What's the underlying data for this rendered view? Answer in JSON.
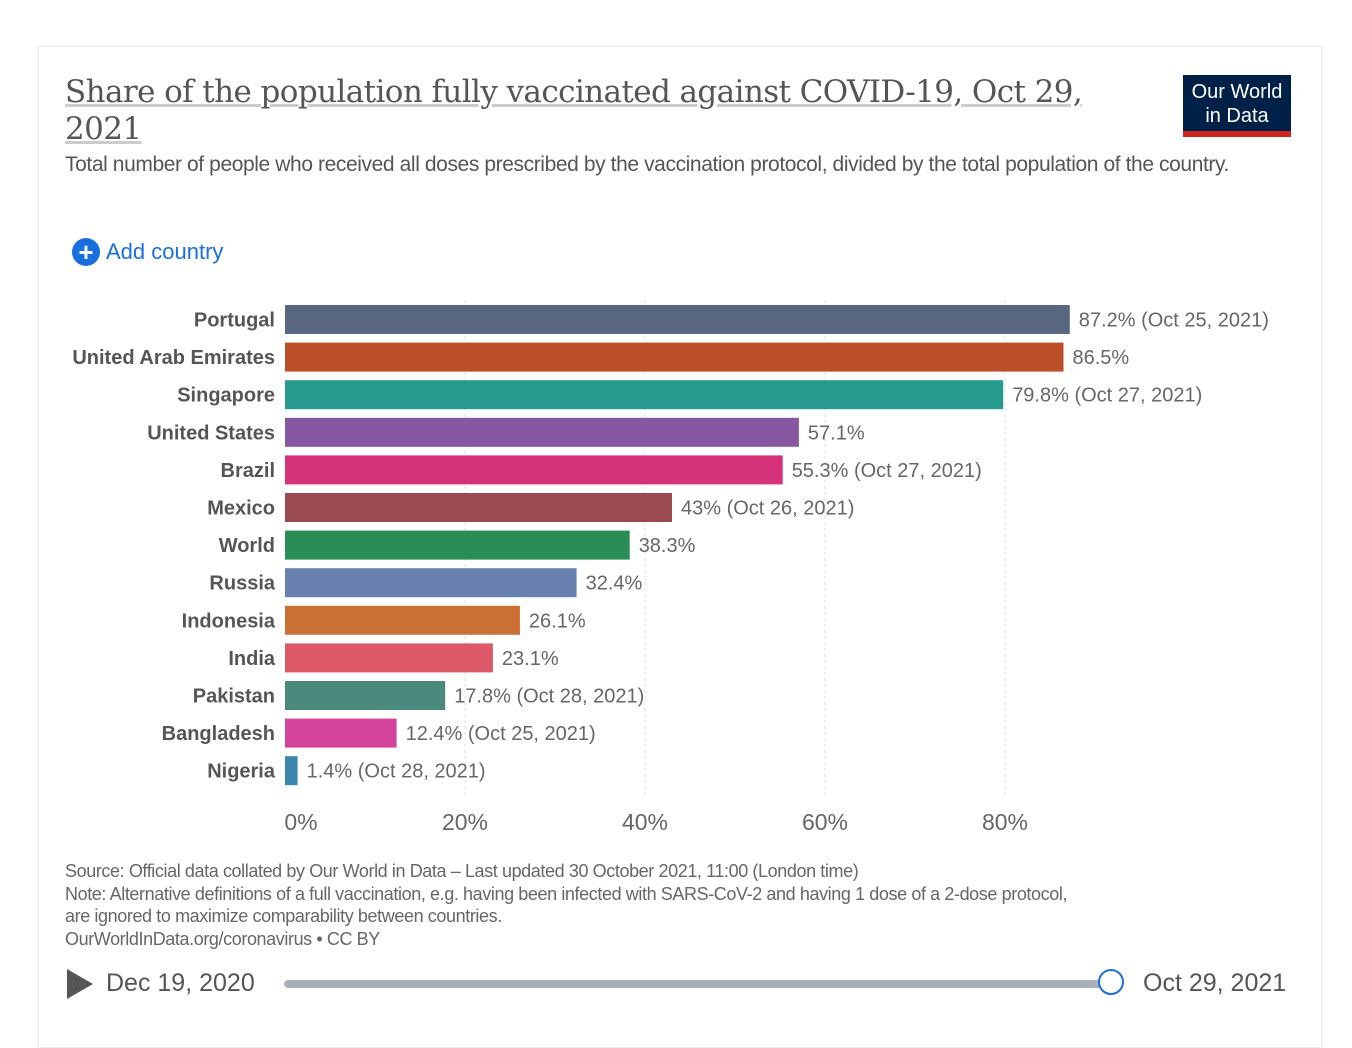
{
  "header": {
    "title": "Share of the population fully vaccinated against COVID-19, Oct 29, 2021",
    "subtitle": "Total number of people who received all doses prescribed by the vaccination protocol, divided by the total population of the country.",
    "logo": "Our World in Data",
    "add_country": "Add country",
    "add_icon": "plus-circle-icon"
  },
  "chart_data": {
    "type": "bar",
    "orientation": "horizontal",
    "title": "Share of the population fully vaccinated against COVID-19, Oct 29, 2021",
    "categories": [
      "Portugal",
      "United Arab Emirates",
      "Singapore",
      "United States",
      "Brazil",
      "Mexico",
      "World",
      "Russia",
      "Indonesia",
      "India",
      "Pakistan",
      "Bangladesh",
      "Nigeria"
    ],
    "values": [
      87.2,
      86.5,
      79.8,
      57.1,
      55.3,
      43,
      38.3,
      32.4,
      26.1,
      23.1,
      17.8,
      12.4,
      1.4
    ],
    "data_labels": [
      "87.2% (Oct 25, 2021)",
      "86.5%",
      "79.8% (Oct 27, 2021)",
      "57.1%",
      "55.3% (Oct 27, 2021)",
      "43% (Oct 26, 2021)",
      "38.3%",
      "32.4%",
      "26.1%",
      "23.1%",
      "17.8% (Oct 28, 2021)",
      "12.4% (Oct 25, 2021)",
      "1.4% (Oct 28, 2021)"
    ],
    "colors": [
      "#58677f",
      "#bb5028",
      "#279a8e",
      "#8457a0",
      "#d63279",
      "#9a4a51",
      "#2a8d55",
      "#6880ae",
      "#cc6f35",
      "#de5967",
      "#4a897c",
      "#d3439a",
      "#3a86af"
    ],
    "xlim": [
      0,
      87.2
    ],
    "x_ticks": [
      0,
      20,
      40,
      60,
      80
    ],
    "x_tick_labels": [
      "0%",
      "20%",
      "40%",
      "60%",
      "80%"
    ],
    "grid": "vertical dashed"
  },
  "footer": {
    "source": "Source: Official data collated by Our World in Data – Last updated 30 October 2021, 11:00 (London time)",
    "note1": "Note: Alternative definitions of a full vaccination, e.g. having been infected with SARS-CoV-2 and having 1 dose of a 2-dose protocol,",
    "note2": "are ignored to maximize comparability between countries.",
    "link": "OurWorldInData.org/coronavirus • CC BY"
  },
  "timeline": {
    "start": "Dec 19, 2020",
    "end": "Oct 29, 2021",
    "position": 1.0
  }
}
